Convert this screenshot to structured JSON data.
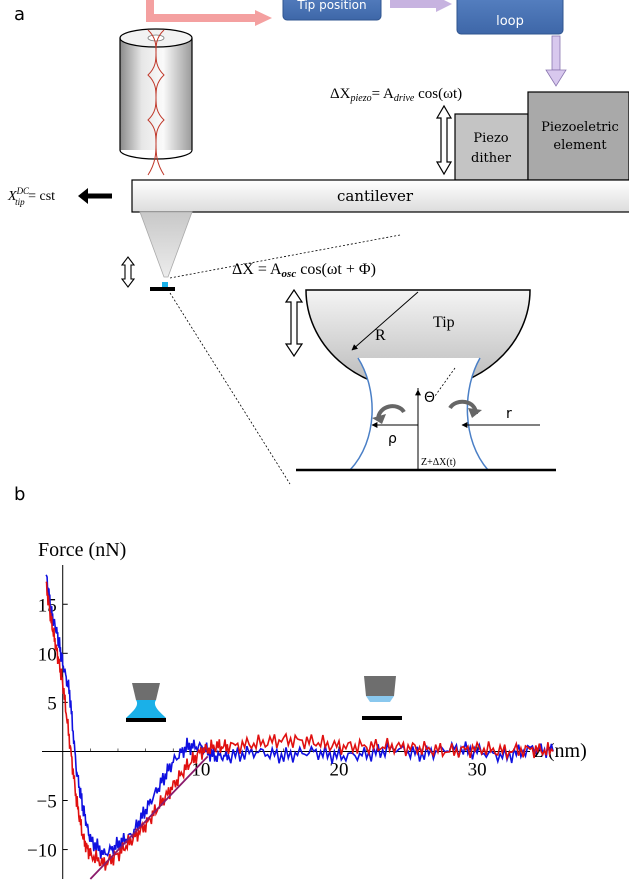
{
  "panel_a": {
    "label": "a",
    "boxes": {
      "tip_position": "Tip position",
      "loop": "loop"
    },
    "drive_equation": "ΔX",
    "drive_sub": "piezo",
    "drive_rhs": "= A",
    "drive_rhs_sub": "drive",
    "drive_rhs_tail": " cos(ωt)",
    "piezo_dither": [
      "Piezo",
      "dither"
    ],
    "piezo_element": [
      "Piezoeletric",
      "element"
    ],
    "cantilever": "cantilever",
    "x_tip": "X",
    "x_tip_sup": "DC",
    "x_tip_sub": "tip",
    "x_tip_rhs": " = cst",
    "osc_equation": "ΔX = A",
    "osc_sub": "osc",
    "osc_tail": " cos(ωt + Φ)",
    "tip_label": "Tip",
    "radius_label": "R",
    "theta_label": "Θ",
    "r_label": "r",
    "rho_label": "ρ",
    "gap_label": "Z+ΔX(t)"
  },
  "panel_b": {
    "label": "b",
    "colors": {
      "blue": "#1010e0",
      "red": "#e01010",
      "fit": "#8b1a6b",
      "meniscus": "#1ab0e8",
      "tip": "#6e6e6e"
    }
  },
  "chart_data": {
    "type": "line",
    "ylabel": "Force (nN)",
    "xlabel": "z (nm)",
    "xlim": [
      -1.5,
      36
    ],
    "ylim": [
      -13,
      19
    ],
    "xticks": [
      10,
      20,
      30
    ],
    "yticks": [
      15,
      10,
      5,
      -5,
      -10
    ],
    "tick_labels": {
      "x": [
        "10",
        "20",
        "30"
      ],
      "y": [
        "15",
        "10",
        "5",
        "−5",
        "−10"
      ]
    },
    "series": [
      {
        "color": "blue",
        "x": [
          -1.2,
          -0.8,
          -0.4,
          0,
          0.5,
          1,
          1.5,
          2,
          3,
          4,
          5,
          6,
          7,
          8,
          9,
          10,
          11,
          12,
          14,
          16,
          18,
          20,
          22,
          24,
          26,
          28,
          30,
          32,
          34,
          35.5
        ],
        "y": [
          18,
          14,
          12,
          9,
          6,
          -2,
          -6,
          -9,
          -10.5,
          -9.5,
          -8.5,
          -6,
          -3.5,
          -1,
          0.5,
          0.5,
          -0.5,
          -0.5,
          0,
          -0.5,
          0,
          -0.5,
          -0.3,
          0.3,
          -0.3,
          0.3,
          0,
          -0.5,
          0.3,
          0
        ]
      },
      {
        "color": "red",
        "x": [
          -1.2,
          -0.8,
          -0.4,
          0,
          0.5,
          1,
          1.5,
          2,
          3,
          4,
          5,
          6,
          7,
          8,
          9,
          10,
          11,
          12,
          14,
          16,
          18,
          20,
          22,
          24,
          26,
          28,
          30,
          32,
          34,
          35.5
        ],
        "y": [
          17,
          13,
          10,
          7,
          1,
          -5,
          -9,
          -10.5,
          -11.5,
          -10.5,
          -9,
          -7.5,
          -5.5,
          -3.5,
          -1.5,
          0,
          0.5,
          0.5,
          0.8,
          1.2,
          1,
          0.5,
          0.5,
          0.5,
          0.3,
          0,
          0.3,
          0,
          0.2,
          0
        ]
      }
    ],
    "fit_line": {
      "x": [
        2,
        10.5
      ],
      "y": [
        -13,
        -0.5
      ]
    }
  }
}
